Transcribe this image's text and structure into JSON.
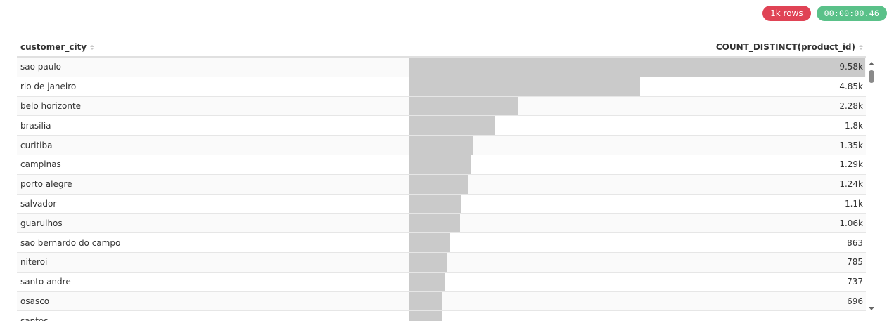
{
  "badges": {
    "rows": "1k rows",
    "time": "00:00:00.46"
  },
  "table": {
    "columns": [
      "customer_city",
      "COUNT_DISTINCT(product_id)"
    ],
    "max_value": 9580,
    "rows": [
      {
        "city": "sao paulo",
        "label": "9.58k",
        "value": 9580
      },
      {
        "city": "rio de janeiro",
        "label": "4.85k",
        "value": 4850
      },
      {
        "city": "belo horizonte",
        "label": "2.28k",
        "value": 2280
      },
      {
        "city": "brasilia",
        "label": "1.8k",
        "value": 1800
      },
      {
        "city": "curitiba",
        "label": "1.35k",
        "value": 1350
      },
      {
        "city": "campinas",
        "label": "1.29k",
        "value": 1290
      },
      {
        "city": "porto alegre",
        "label": "1.24k",
        "value": 1240
      },
      {
        "city": "salvador",
        "label": "1.1k",
        "value": 1100
      },
      {
        "city": "guarulhos",
        "label": "1.06k",
        "value": 1060
      },
      {
        "city": "sao bernardo do campo",
        "label": "863",
        "value": 863
      },
      {
        "city": "niteroi",
        "label": "785",
        "value": 785
      },
      {
        "city": "santo andre",
        "label": "737",
        "value": 737
      },
      {
        "city": "osasco",
        "label": "696",
        "value": 696
      },
      {
        "city": "santos",
        "label": "",
        "value": 690
      }
    ]
  },
  "colors": {
    "rows_badge": "#e04355",
    "time_badge": "#5ac189",
    "bar": "#cacaca"
  }
}
